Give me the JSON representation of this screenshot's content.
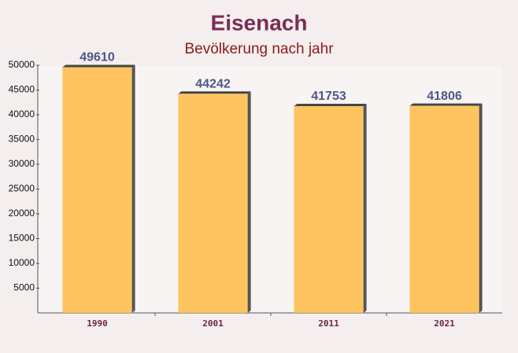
{
  "chart_data": {
    "type": "bar",
    "title": "Eisenach",
    "subtitle": "Bevölkerung nach jahr",
    "categories": [
      "1990",
      "2001",
      "2011",
      "2021"
    ],
    "values": [
      49610,
      44242,
      41753,
      41806
    ],
    "color": "#fdbf50",
    "ylim": [
      0,
      50000
    ],
    "yticks": [
      5000,
      10000,
      15000,
      20000,
      25000,
      30000,
      35000,
      40000,
      45000,
      50000
    ],
    "grid": false
  }
}
